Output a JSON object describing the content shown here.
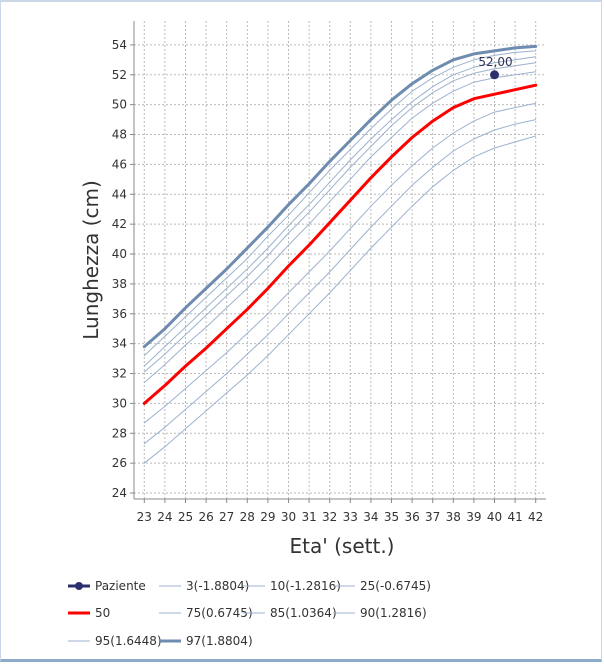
{
  "chart_data": {
    "type": "line",
    "title": "",
    "xlabel": "Eta' (sett.)",
    "ylabel": "Lunghezza (cm)",
    "xlim": [
      22.5,
      42.5
    ],
    "ylim": [
      23.6,
      55.6
    ],
    "grid": true,
    "x": [
      23,
      24,
      25,
      26,
      27,
      28,
      29,
      30,
      31,
      32,
      33,
      34,
      35,
      36,
      37,
      38,
      39,
      40,
      41,
      42
    ],
    "x_ticks": [
      "23",
      "24",
      "25",
      "26",
      "27",
      "28",
      "29",
      "30",
      "31",
      "32",
      "33",
      "34",
      "35",
      "36",
      "37",
      "38",
      "39",
      "40",
      "41",
      "42"
    ],
    "y_ticks": [
      "24",
      "26",
      "28",
      "30",
      "32",
      "34",
      "36",
      "38",
      "40",
      "42",
      "44",
      "46",
      "48",
      "50",
      "52",
      "54"
    ],
    "y_tick_values": [
      24,
      26,
      28,
      30,
      32,
      34,
      36,
      38,
      40,
      42,
      44,
      46,
      48,
      50,
      52,
      54
    ],
    "patient": {
      "name": "Paziente",
      "x": 40,
      "y": 52.0,
      "label": "52,00",
      "color": "#2b2f6e"
    },
    "series": [
      {
        "name": "3(-1.8804)",
        "color": "#9db2cf",
        "width": 1,
        "values": [
          26.0,
          27.1,
          28.3,
          29.5,
          30.7,
          31.9,
          33.2,
          34.6,
          36.0,
          37.4,
          38.9,
          40.4,
          41.8,
          43.2,
          44.5,
          45.6,
          46.5,
          47.1,
          47.5,
          47.9
        ]
      },
      {
        "name": "10(-1.2816)",
        "color": "#9db2cf",
        "width": 1,
        "values": [
          27.3,
          28.4,
          29.6,
          30.8,
          32.0,
          33.3,
          34.6,
          36.0,
          37.4,
          38.8,
          40.3,
          41.8,
          43.2,
          44.6,
          45.8,
          46.9,
          47.7,
          48.3,
          48.7,
          49.0
        ]
      },
      {
        "name": "25(-0.6745)",
        "color": "#9db2cf",
        "width": 1,
        "values": [
          28.7,
          29.8,
          31.0,
          32.2,
          33.4,
          34.7,
          36.0,
          37.4,
          38.8,
          40.2,
          41.7,
          43.2,
          44.6,
          45.9,
          47.1,
          48.1,
          48.9,
          49.5,
          49.8,
          50.1
        ]
      },
      {
        "name": "50",
        "color": "#ff0000",
        "width": 3,
        "values": [
          30.0,
          31.2,
          32.5,
          33.7,
          35.0,
          36.3,
          37.7,
          39.2,
          40.6,
          42.1,
          43.6,
          45.1,
          46.5,
          47.8,
          48.9,
          49.8,
          50.4,
          50.7,
          51.0,
          51.3
        ]
      },
      {
        "name": "75(0.6745)",
        "color": "#9db2cf",
        "width": 1,
        "values": [
          31.4,
          32.6,
          33.9,
          35.1,
          36.4,
          37.7,
          39.1,
          40.6,
          42.0,
          43.5,
          45.0,
          46.5,
          47.8,
          49.1,
          50.1,
          50.9,
          51.5,
          51.8,
          52.0,
          52.2
        ]
      },
      {
        "name": "85(1.0364)",
        "color": "#9db2cf",
        "width": 1,
        "values": [
          32.1,
          33.3,
          34.6,
          35.9,
          37.2,
          38.5,
          39.9,
          41.4,
          42.8,
          44.3,
          45.8,
          47.2,
          48.6,
          49.8,
          50.8,
          51.6,
          52.1,
          52.4,
          52.6,
          52.8
        ]
      },
      {
        "name": "90(1.2816)",
        "color": "#9db2cf",
        "width": 1,
        "values": [
          32.5,
          33.8,
          35.1,
          36.4,
          37.7,
          39.0,
          40.4,
          41.9,
          43.3,
          44.8,
          46.3,
          47.7,
          49.0,
          50.2,
          51.2,
          52.0,
          52.5,
          52.8,
          53.0,
          53.2
        ]
      },
      {
        "name": "95(1.6448)",
        "color": "#9db2cf",
        "width": 1,
        "values": [
          33.2,
          34.5,
          35.8,
          37.1,
          38.4,
          39.7,
          41.2,
          42.6,
          44.1,
          45.6,
          47.0,
          48.4,
          49.7,
          50.9,
          51.8,
          52.5,
          53.0,
          53.3,
          53.5,
          53.6
        ]
      },
      {
        "name": "97(1.8804)",
        "color": "#6e8bb0",
        "width": 3,
        "values": [
          33.8,
          35.0,
          36.4,
          37.7,
          39.0,
          40.4,
          41.8,
          43.3,
          44.7,
          46.2,
          47.6,
          49.0,
          50.3,
          51.4,
          52.3,
          53.0,
          53.4,
          53.6,
          53.8,
          53.9
        ]
      }
    ],
    "legend_placement": "bottom-left"
  }
}
